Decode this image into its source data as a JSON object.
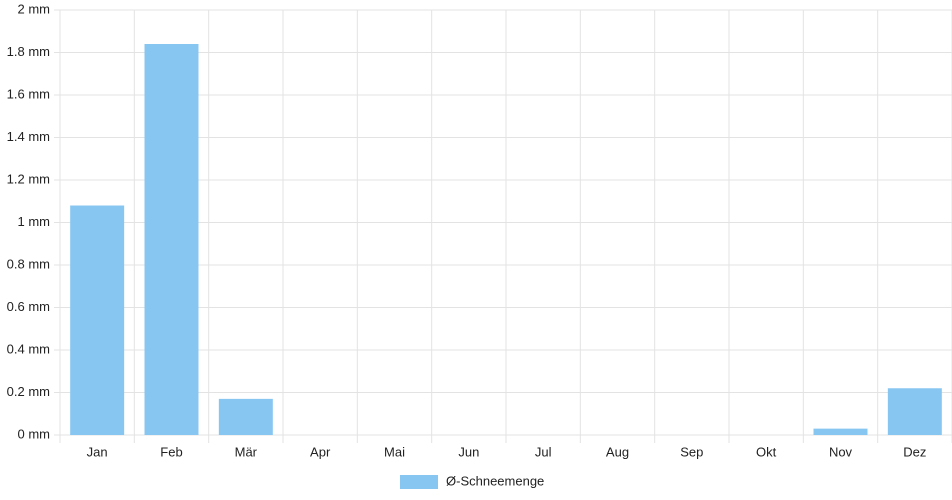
{
  "chart_data": {
    "type": "bar",
    "categories": [
      "Jan",
      "Feb",
      "Mär",
      "Apr",
      "Mai",
      "Jun",
      "Jul",
      "Aug",
      "Sep",
      "Okt",
      "Nov",
      "Dez"
    ],
    "series": [
      {
        "name": "Ø-Schneemenge",
        "color": "#88c6f2",
        "values": [
          1.08,
          1.84,
          0.17,
          0,
          0,
          0,
          0,
          0,
          0,
          0,
          0.03,
          0.22
        ]
      }
    ],
    "ylim": [
      0,
      2
    ],
    "yticks": [
      {
        "value": 0,
        "label": "0 mm"
      },
      {
        "value": 0.2,
        "label": "0.2 mm"
      },
      {
        "value": 0.4,
        "label": "0.4 mm"
      },
      {
        "value": 0.6,
        "label": "0.6 mm"
      },
      {
        "value": 0.8,
        "label": "0.8 mm"
      },
      {
        "value": 1,
        "label": "1 mm"
      },
      {
        "value": 1.2,
        "label": "1.2 mm"
      },
      {
        "value": 1.4,
        "label": "1.4 mm"
      },
      {
        "value": 1.6,
        "label": "1.6 mm"
      },
      {
        "value": 1.8,
        "label": "1.8 mm"
      },
      {
        "value": 2,
        "label": "2 mm"
      }
    ],
    "grid": true,
    "legend": "bottom"
  }
}
